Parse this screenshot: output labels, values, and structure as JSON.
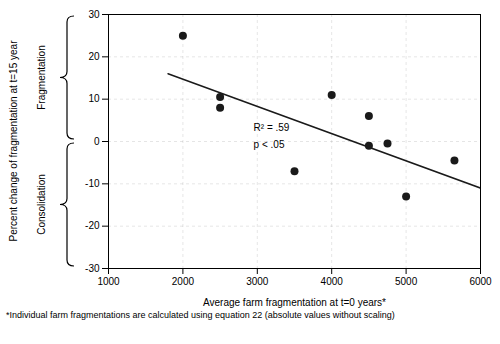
{
  "chart_data": {
    "type": "scatter",
    "x": [
      2000,
      2500,
      2500,
      3500,
      4000,
      4500,
      4500,
      4750,
      5000,
      5650
    ],
    "values": [
      25,
      8,
      10.5,
      -7,
      11,
      6,
      -1,
      -0.5,
      -13,
      -4.5
    ],
    "color": "#1a1a1a",
    "trendline": {
      "x": [
        1800,
        6000
      ],
      "values": [
        16.0,
        -11.0
      ],
      "color": "#1a1a1a"
    },
    "annotations": [
      {
        "text": "R² = .59",
        "x": 2950,
        "y": 2.5
      },
      {
        "text": "p < .05",
        "x": 2950,
        "y": -1.5
      }
    ],
    "xlabel": "Average farm fragmentation at t=0 years*",
    "ylabel": "Percent change of fragmentation at t=15 year",
    "region_labels": [
      "Fragmentation",
      "Consolidation"
    ],
    "footnote": "*Individual farm fragmentations are calculated using equation 22 (absolute values without scaling)",
    "xlim": [
      1000,
      6000
    ],
    "ylim": [
      -30,
      30
    ],
    "xticks": [
      1000,
      2000,
      3000,
      4000,
      5000,
      6000
    ],
    "yticks": [
      -30,
      -20,
      -10,
      0,
      10,
      20,
      30
    ],
    "grid": true
  }
}
